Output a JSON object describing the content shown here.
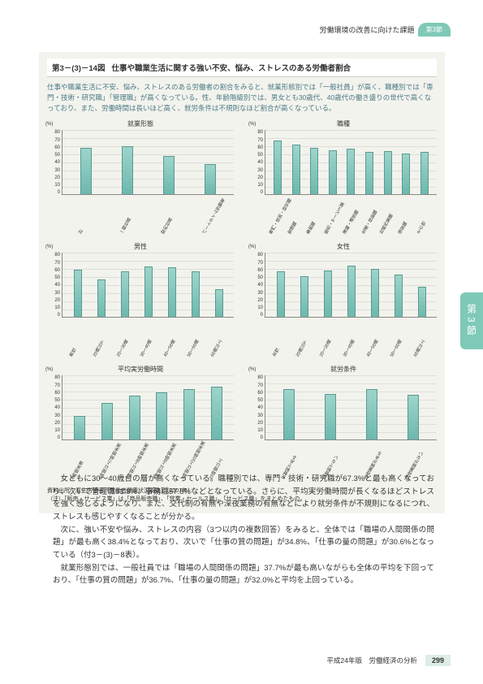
{
  "header": {
    "breadcrumb": "労働環境の改善に向けた課題",
    "tab": "第3節"
  },
  "figure": {
    "num": "第3－(3)－14図",
    "title": "仕事や職業生活に関する強い不安、悩み、ストレスのある労働者割合",
    "desc": "仕事や職業生活に不安、悩み、ストレスのある労働者の割合をみると、就業形態別では「一般社員」が高く、職種別では「専門・技術・研究職」「管理職」が高くなっている。性、年齢階級別では、男女とも30歳代、40歳代の働き盛りの世代で高くなっており、また、労働時間は長いほど高く、就労条件は不規則なほど割合が高くなっている。",
    "y_unit": "(%)",
    "y_ticks": [
      "80",
      "70",
      "60",
      "50",
      "40",
      "30",
      "20",
      "10",
      "0"
    ],
    "ylim": [
      0,
      80
    ],
    "bar_color_top": "#9dd4cb",
    "bar_color_bottom": "#6db8ad",
    "bar_border": "#5a9a90",
    "grid_color": "#dddddd",
    "background_color": "#f3f3ed",
    "charts": [
      {
        "title": "就業形態",
        "cats": [
          "計",
          "一般社員",
          "契約社員",
          "パートタイム労働者"
        ],
        "vals": [
          58,
          60,
          48,
          38
        ]
      },
      {
        "title": "職種",
        "cats": [
          "専門・技術・研究職",
          "管理職",
          "事務職",
          "販売・サービス業",
          "運輸・通信職",
          "生産・技能職",
          "社務作業職",
          "保安職",
          "その他"
        ],
        "vals": [
          67,
          62,
          58,
          55,
          57,
          53,
          54,
          51,
          53
        ]
      },
      {
        "title": "男性",
        "cats": [
          "男性",
          "20歳以下",
          "20～30歳",
          "30～40歳",
          "40～50歳",
          "50～60歳",
          "60歳以上"
        ],
        "vals": [
          59,
          47,
          57,
          63,
          62,
          57,
          35
        ]
      },
      {
        "title": "女性",
        "cats": [
          "女性",
          "20歳以下",
          "20～30歳",
          "30～40歳",
          "40～50歳",
          "50～60歳",
          "60歳以上"
        ],
        "vals": [
          57,
          51,
          58,
          64,
          60,
          53,
          38
        ]
      },
      {
        "title": "平均実労働時間",
        "cats": [
          "6時間未満",
          "6時間以上7時間未満",
          "7時間以上8時間未満",
          "8時間以上9時間未満",
          "9時間以上10時間未満",
          "10時間以上"
        ],
        "vals": [
          30,
          46,
          55,
          59,
          63,
          66
        ]
      },
      {
        "title": "就労条件",
        "cats": [
          "交替制である",
          "交替制でない",
          "深夜業務がある",
          "深夜業務がない"
        ],
        "vals": [
          63,
          57,
          63,
          56
        ]
      }
    ],
    "source1": "資料出所　厚生労働省「労働者健康状況調査」（2007年）",
    "source2": "（注）「販売・サービス業」は「商品販売職」、「営業・セールス職」、「サービス職」をまとめたもの。"
  },
  "body": {
    "p1": "女ともに30～40歳台の層が高くなっている。職種別では、専門・技術・研究職が67.3%と最も高くなっており、次いで管理職61.8%、事務職57.8%などとなっている。さらに、平均実労働時間が長くなるほどストレスを強く感じるようになり、また、交代制の有無や深夜業務の有無などにより就労条件が不規則になるにつれ、ストレスも感じやすくなることが分かる。",
    "p2": "次に、強い不安や悩み、ストレスの内容（3つ以内の複数回答）をみると、全体では「職場の人間関係の問題」が最も高く38.4%となっており、次いで「仕事の質の問題」が34.8%、「仕事の量の問題」が30.6%となっている（付3－(3)－8表）。",
    "p3": "就業形態別では、一般社員では「職場の人間関係の問題」37.7%が最も高いながらも全体の平均を下回っており、「仕事の質の問題」が36.7%、「仕事の量の問題」が32.0%と平均を上回っている。"
  },
  "side_tab": "第3節",
  "footer": {
    "caption": "平成24年版　労働経済の分析",
    "page": "299"
  }
}
